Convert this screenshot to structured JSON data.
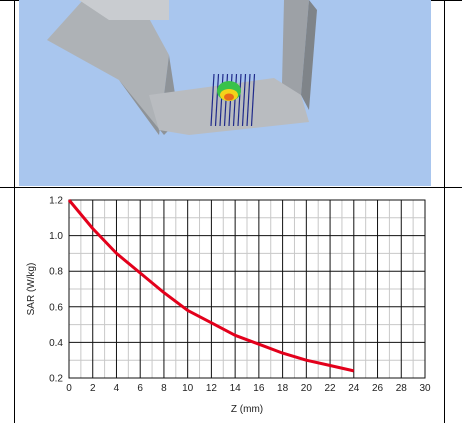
{
  "chart_data": {
    "type": "line",
    "xlabel": "Z (mm)",
    "ylabel": "SAR (W/kg)",
    "xlim": [
      0,
      30
    ],
    "ylim": [
      0.2,
      1.2
    ],
    "x_ticks": [
      0,
      2,
      4,
      6,
      8,
      10,
      12,
      14,
      16,
      18,
      20,
      22,
      24,
      26,
      28,
      30
    ],
    "y_ticks": [
      0.2,
      0.4,
      0.6,
      0.8,
      1.0,
      1.2
    ],
    "grid": true,
    "series": [
      {
        "color": "#e3001b",
        "x": [
          0,
          2,
          4,
          6,
          8,
          10,
          12,
          14,
          16,
          18,
          20,
          22,
          24
        ],
        "y": [
          1.2,
          1.04,
          0.9,
          0.79,
          0.68,
          0.58,
          0.51,
          0.44,
          0.39,
          0.34,
          0.3,
          0.27,
          0.24
        ]
      }
    ]
  },
  "render": {
    "background_color": "#a9c6ee",
    "phantom_color": "#b9bcc0",
    "scan_grid_color": "#1f2a8a",
    "hotspot_colors": [
      "#39c24a",
      "#f4d21a",
      "#e86a1a"
    ]
  }
}
